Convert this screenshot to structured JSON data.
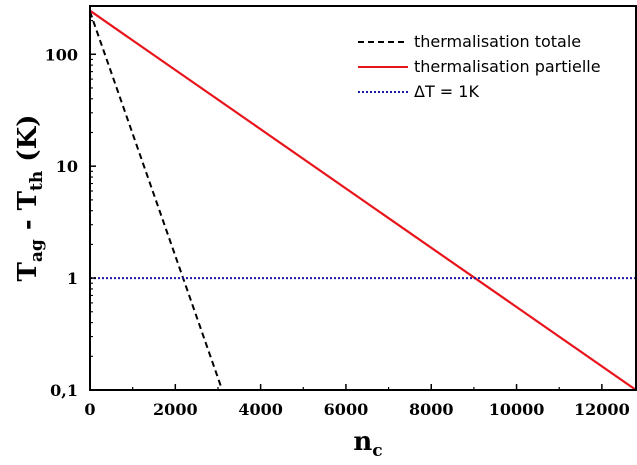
{
  "chart_data": {
    "type": "line",
    "x_scale": "linear",
    "y_scale": "log",
    "xlim": [
      0,
      12800
    ],
    "ylim": [
      0.1,
      270
    ],
    "x_ticks": [
      0,
      2000,
      4000,
      6000,
      8000,
      10000,
      12000
    ],
    "x_tick_labels": [
      "0",
      "2000",
      "4000",
      "6000",
      "8000",
      "10000",
      "12000"
    ],
    "y_ticks": [
      0.1,
      1,
      10,
      100
    ],
    "y_tick_labels": [
      "0,1",
      "1",
      "10",
      "100"
    ],
    "xlabel": {
      "main": "n",
      "sub": "c"
    },
    "ylabel": {
      "t1": "T",
      "s1": "ag",
      "mid": " - T",
      "s2": "th",
      "unit": " (K)"
    },
    "grid": false,
    "legend_position": "top-right",
    "series": [
      {
        "name": "thermalisation totale",
        "color": "#000000",
        "style": "dashed",
        "x": [
          0,
          3100
        ],
        "y": [
          240,
          0.1
        ]
      },
      {
        "name": "thermalisation partielle",
        "color": "#e8141b",
        "style": "solid",
        "x": [
          0,
          12800
        ],
        "y": [
          245,
          0.1
        ]
      },
      {
        "name": "ΔT = 1K",
        "color": "#1a1aa8",
        "style": "dotted",
        "x": [
          0,
          12800
        ],
        "y": [
          1,
          1
        ]
      }
    ]
  }
}
